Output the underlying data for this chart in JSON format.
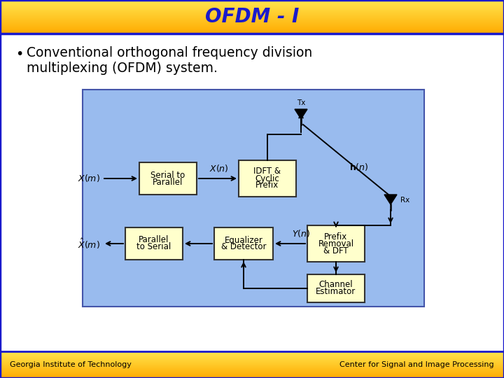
{
  "title": "OFDM - I",
  "title_color": "#1a1acc",
  "border_color": "#1a1acc",
  "slide_bg": "#ffffff",
  "bullet_text_line1": "Conventional orthogonal frequency division",
  "bullet_text_line2": "multiplexing (OFDM) system.",
  "diagram_bg": "#99bbee",
  "box_fill": "#ffffcc",
  "box_edge": "#333333",
  "footer_left": "Georgia Institute of Technology",
  "footer_right": "Center for Signal and Image Processing",
  "header_c1": "#ffe44d",
  "header_c2": "#ffaa00",
  "footer_c1": "#ffe44d",
  "footer_c2": "#ffaa00"
}
